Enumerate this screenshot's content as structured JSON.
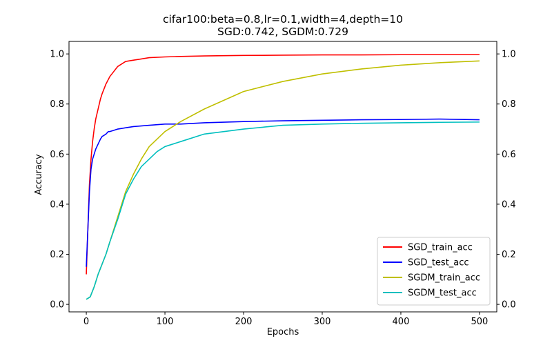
{
  "chart_data": {
    "type": "line",
    "title": "cifar100:beta=0.8,lr=0.1,width=4,depth=10",
    "subtitle": "SGD:0.742, SGDM:0.729",
    "xlabel": "Epochs",
    "ylabel": "Accuracy",
    "xlim": [
      -22,
      522
    ],
    "ylim": [
      -0.03,
      1.05
    ],
    "x_ticks": [
      0,
      100,
      200,
      300,
      400,
      500
    ],
    "y_ticks": [
      0.0,
      0.2,
      0.4,
      0.6,
      0.8,
      1.0
    ],
    "x_tick_labels": [
      "0",
      "100",
      "200",
      "300",
      "400",
      "500"
    ],
    "y_tick_labels": [
      "0.0",
      "0.2",
      "0.4",
      "0.6",
      "0.8",
      "1.0"
    ],
    "secondary_y_axis": true,
    "grid": false,
    "legend_position": "lower-right",
    "series": [
      {
        "name": "SGD_train_acc",
        "color": "#ff0000",
        "x": [
          0,
          2,
          4,
          6,
          8,
          10,
          12,
          15,
          18,
          20,
          25,
          30,
          35,
          40,
          45,
          50,
          60,
          70,
          80,
          100,
          120,
          150,
          200,
          250,
          300,
          350,
          400,
          450,
          500
        ],
        "y": [
          0.12,
          0.3,
          0.48,
          0.58,
          0.65,
          0.7,
          0.74,
          0.78,
          0.82,
          0.84,
          0.88,
          0.91,
          0.93,
          0.95,
          0.96,
          0.97,
          0.975,
          0.98,
          0.985,
          0.988,
          0.99,
          0.992,
          0.994,
          0.995,
          0.996,
          0.996,
          0.997,
          0.997,
          0.997
        ]
      },
      {
        "name": "SGD_test_acc",
        "color": "#0000ff",
        "x": [
          0,
          2,
          4,
          6,
          8,
          10,
          12,
          15,
          18,
          20,
          25,
          28,
          30,
          35,
          40,
          50,
          60,
          80,
          100,
          120,
          150,
          200,
          250,
          300,
          350,
          400,
          450,
          500
        ],
        "y": [
          0.15,
          0.3,
          0.45,
          0.54,
          0.58,
          0.6,
          0.62,
          0.64,
          0.66,
          0.67,
          0.68,
          0.69,
          0.69,
          0.695,
          0.7,
          0.705,
          0.71,
          0.715,
          0.72,
          0.72,
          0.725,
          0.73,
          0.733,
          0.735,
          0.737,
          0.738,
          0.74,
          0.737
        ]
      },
      {
        "name": "SGDM_train_acc",
        "color": "#bfbf00",
        "x": [
          0,
          5,
          10,
          15,
          20,
          25,
          30,
          40,
          50,
          60,
          70,
          80,
          90,
          100,
          120,
          150,
          200,
          250,
          300,
          350,
          400,
          450,
          500
        ],
        "y": [
          0.02,
          0.03,
          0.07,
          0.12,
          0.16,
          0.2,
          0.25,
          0.35,
          0.45,
          0.52,
          0.58,
          0.63,
          0.66,
          0.69,
          0.73,
          0.78,
          0.85,
          0.89,
          0.92,
          0.94,
          0.955,
          0.965,
          0.972
        ]
      },
      {
        "name": "SGDM_test_acc",
        "color": "#00bfbf",
        "x": [
          0,
          5,
          10,
          15,
          20,
          25,
          30,
          40,
          50,
          60,
          70,
          80,
          90,
          100,
          120,
          150,
          200,
          250,
          300,
          350,
          400,
          450,
          500
        ],
        "y": [
          0.02,
          0.03,
          0.07,
          0.12,
          0.16,
          0.2,
          0.25,
          0.34,
          0.44,
          0.5,
          0.55,
          0.58,
          0.61,
          0.63,
          0.65,
          0.68,
          0.7,
          0.715,
          0.72,
          0.723,
          0.725,
          0.727,
          0.728
        ]
      }
    ]
  }
}
